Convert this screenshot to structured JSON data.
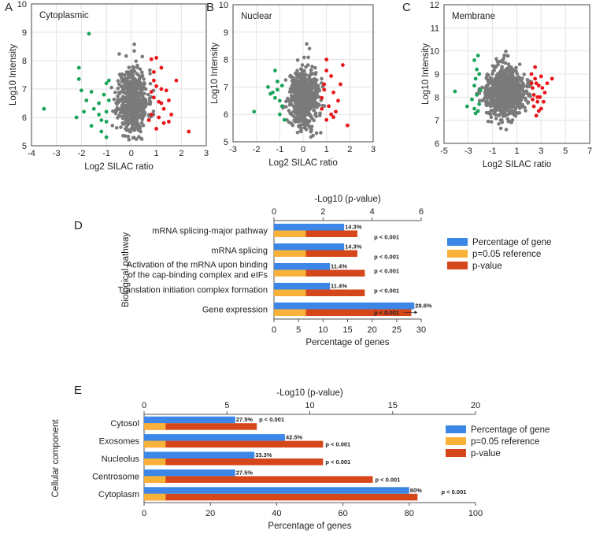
{
  "colors": {
    "gray": "#7a7a7a",
    "green": "#1aa35a",
    "red": "#e8161a",
    "blue": "#3b86e6",
    "orange": "#f8b23a",
    "darkorange": "#d6461b"
  },
  "chart_data": [
    {
      "type": "scatter",
      "panel": "A",
      "title": "Cytoplasmic",
      "xlabel": "Log2 SILAC ratio",
      "ylabel": "Log10 Intensity",
      "xlim": [
        -4,
        3
      ],
      "ylim": [
        5,
        10
      ],
      "xticks": [
        -4,
        -3,
        -2,
        -1,
        0,
        1,
        2,
        3
      ],
      "yticks": [
        5,
        6,
        7,
        8,
        9,
        10
      ],
      "cloud": {
        "cx": 0.05,
        "cy": 6.6,
        "sx": 0.3,
        "sy": 0.65,
        "n": 550,
        "xmin": -1.5,
        "xmax": 1.4,
        "ymin": 5.2,
        "ymax": 9.2
      },
      "down": [
        [
          -3.5,
          6.3
        ],
        [
          -1.7,
          8.95
        ],
        [
          -2.1,
          7.75
        ],
        [
          -2.1,
          7.35
        ],
        [
          -2.0,
          6.95
        ],
        [
          -1.8,
          6.6
        ],
        [
          -1.6,
          6.9
        ],
        [
          -1.5,
          6.3
        ],
        [
          -1.9,
          6.2
        ],
        [
          -2.2,
          6.0
        ],
        [
          -1.3,
          6.5
        ],
        [
          -1.2,
          5.9
        ],
        [
          -1.0,
          6.2
        ],
        [
          -1.0,
          7.2
        ],
        [
          -0.9,
          7.3
        ],
        [
          -1.1,
          6.8
        ],
        [
          -1.2,
          5.5
        ],
        [
          -1.0,
          5.3
        ],
        [
          -1.3,
          6.1
        ],
        [
          -1.6,
          5.7
        ],
        [
          -0.9,
          6.6
        ],
        [
          -1.0,
          5.85
        ]
      ],
      "up": [
        [
          2.3,
          5.5
        ],
        [
          1.8,
          7.3
        ],
        [
          1.6,
          6.1
        ],
        [
          1.5,
          6.6
        ],
        [
          1.4,
          6.95
        ],
        [
          1.3,
          5.8
        ],
        [
          1.2,
          6.5
        ],
        [
          1.0,
          7.1
        ],
        [
          0.9,
          7.6
        ],
        [
          0.8,
          8.05
        ],
        [
          1.0,
          8.1
        ],
        [
          1.2,
          7.75
        ],
        [
          0.9,
          6.7
        ],
        [
          1.1,
          6.0
        ],
        [
          1.3,
          6.3
        ],
        [
          0.8,
          6.1
        ],
        [
          1.0,
          5.6
        ],
        [
          0.9,
          7.3
        ],
        [
          1.2,
          7.0
        ],
        [
          0.7,
          5.9
        ],
        [
          0.8,
          6.9
        ],
        [
          1.1,
          6.55
        ],
        [
          1.5,
          5.85
        ]
      ]
    },
    {
      "type": "scatter",
      "panel": "B",
      "title": "Nuclear",
      "xlabel": "Log2 SILAC ratio",
      "ylabel": "Log10 Intensity",
      "xlim": [
        -3,
        3
      ],
      "ylim": [
        5,
        10
      ],
      "xticks": [
        -3,
        -2,
        -1,
        0,
        1,
        2,
        3
      ],
      "yticks": [
        5,
        6,
        7,
        8,
        9,
        10
      ],
      "cloud": {
        "cx": 0.0,
        "cy": 6.6,
        "sx": 0.32,
        "sy": 0.6,
        "n": 550,
        "xmin": -1.3,
        "xmax": 1.3,
        "ymin": 5.15,
        "ymax": 9.35
      },
      "down": [
        [
          -2.1,
          6.1
        ],
        [
          -1.5,
          7.0
        ],
        [
          -1.2,
          7.6
        ],
        [
          -1.1,
          6.9
        ],
        [
          -1.0,
          6.5
        ],
        [
          -1.3,
          6.8
        ],
        [
          -0.9,
          6.3
        ],
        [
          -1.1,
          7.2
        ],
        [
          -0.8,
          5.8
        ],
        [
          -1.0,
          6.0
        ],
        [
          -1.2,
          6.6
        ],
        [
          -0.9,
          7.05
        ],
        [
          -1.4,
          6.75
        ]
      ],
      "up": [
        [
          1.9,
          5.6
        ],
        [
          1.7,
          7.8
        ],
        [
          1.6,
          7.1
        ],
        [
          1.5,
          6.5
        ],
        [
          1.4,
          6.1
        ],
        [
          1.3,
          6.8
        ],
        [
          1.2,
          7.4
        ],
        [
          1.0,
          8.0
        ],
        [
          1.1,
          6.3
        ],
        [
          0.9,
          6.9
        ],
        [
          1.0,
          5.8
        ],
        [
          0.8,
          6.6
        ],
        [
          1.3,
          5.9
        ],
        [
          1.0,
          7.6
        ],
        [
          0.9,
          7.1
        ],
        [
          1.2,
          6.0
        ],
        [
          0.8,
          6.2
        ]
      ]
    },
    {
      "type": "scatter",
      "panel": "C",
      "title": "Membrane",
      "xlabel": "Log2 SILAC ratio",
      "ylabel": "Log10 Intensity",
      "xlim": [
        -5,
        7
      ],
      "ylim": [
        6,
        12
      ],
      "xticks": [
        -5,
        -3,
        -1,
        1,
        3,
        5,
        7
      ],
      "yticks": [
        6,
        7,
        8,
        9,
        10,
        11,
        12
      ],
      "cloud": {
        "cx": 0.0,
        "cy": 8.2,
        "sx": 0.85,
        "sy": 0.6,
        "n": 900,
        "xmin": -2.3,
        "xmax": 2.3,
        "ymin": 6.5,
        "ymax": 10.9
      },
      "down": [
        [
          -4.1,
          8.25
        ],
        [
          -3.1,
          7.6
        ],
        [
          -2.7,
          7.9
        ],
        [
          -2.5,
          8.5
        ],
        [
          -2.4,
          8.8
        ],
        [
          -2.3,
          9.2
        ],
        [
          -2.2,
          9.8
        ],
        [
          -2.5,
          9.6
        ],
        [
          -2.3,
          8.1
        ],
        [
          -2.5,
          7.5
        ],
        [
          -2.2,
          7.4
        ],
        [
          -2.1,
          7.7
        ],
        [
          -2.0,
          8.3
        ],
        [
          -2.4,
          7.3
        ],
        [
          -2.1,
          9.0
        ]
      ],
      "up": [
        [
          3.9,
          8.8
        ],
        [
          3.5,
          8.6
        ],
        [
          3.3,
          8.2
        ],
        [
          3.2,
          7.8
        ],
        [
          3.0,
          7.5
        ],
        [
          3.0,
          8.9
        ],
        [
          2.8,
          8.5
        ],
        [
          2.7,
          8.0
        ],
        [
          2.6,
          7.2
        ],
        [
          2.5,
          8.8
        ],
        [
          2.5,
          9.3
        ],
        [
          2.4,
          7.6
        ],
        [
          2.3,
          8.4
        ],
        [
          2.3,
          7.9
        ],
        [
          2.2,
          9.0
        ],
        [
          2.9,
          8.0
        ],
        [
          2.7,
          7.8
        ],
        [
          3.1,
          8.4
        ],
        [
          2.6,
          8.6
        ],
        [
          2.4,
          8.1
        ],
        [
          2.8,
          7.4
        ],
        [
          2.2,
          8.6
        ]
      ]
    },
    {
      "type": "bar",
      "orientation": "horizontal",
      "panel": "D",
      "ylabel": "Biological pathway",
      "xlabel": "Percentage of genes",
      "xlabel_top": "-Log10 (p-value)",
      "xlim": [
        0,
        30
      ],
      "xticks": [
        0,
        5,
        10,
        15,
        20,
        25,
        30
      ],
      "xlim_top": [
        0,
        6
      ],
      "xticks_top": [
        0,
        2,
        4,
        6
      ],
      "categories": [
        "mRNA splicing-major pathway",
        "mRNA splicing",
        "Activation of the mRNA upon binding of the cap-binding complex and eIFs",
        "Translation initiation complex formation",
        "Gene expression"
      ],
      "category_lines": [
        [
          "mRNA splicing-major pathway"
        ],
        [
          "mRNA splicing"
        ],
        [
          "Activation of the mRNA upon binding",
          "of the cap-binding complex and eIFs"
        ],
        [
          "Translation initiation complex formation"
        ],
        [
          "Gene expression"
        ]
      ],
      "percentage_labels": [
        "14.3%",
        "14.3%",
        "11.4%",
        "11.4%",
        "28.6%"
      ],
      "pvalue_labels": [
        "p < 0.001",
        "p < 0.001",
        "p < 0.001",
        "p < 0.001",
        "p < 0.001"
      ],
      "series": [
        {
          "name": "Percentage of gene",
          "axis": "bottom",
          "values": [
            14.3,
            14.3,
            11.4,
            11.4,
            28.6
          ]
        },
        {
          "name": "p=0.05 reference",
          "axis": "top",
          "values": [
            1.3,
            1.3,
            1.3,
            1.3,
            1.3
          ]
        },
        {
          "name": "p-value",
          "axis": "top",
          "values": [
            3.4,
            3.4,
            3.7,
            3.7,
            5.6
          ]
        }
      ]
    },
    {
      "type": "bar",
      "orientation": "horizontal",
      "panel": "E",
      "ylabel": "Cellular component",
      "xlabel": "Percentage of genes",
      "xlabel_top": "-Log10 (p-value)",
      "xlim": [
        0,
        100
      ],
      "xticks": [
        0,
        20,
        40,
        60,
        80,
        100
      ],
      "xlim_top": [
        0,
        20
      ],
      "xticks_top": [
        0,
        5,
        10,
        15,
        20
      ],
      "categories": [
        "Cytosol",
        "Exosomes",
        "Nucleolus",
        "Centrosome",
        "Cytoplasm"
      ],
      "category_lines": [
        [
          "Cytosol"
        ],
        [
          "Exosomes"
        ],
        [
          "Nucleolus"
        ],
        [
          "Centrosome"
        ],
        [
          "Cytoplasm"
        ]
      ],
      "percentage_labels": [
        "27.5%",
        "42.5%",
        "33.3%",
        "27.5%",
        "80%"
      ],
      "pvalue_labels": [
        "p < 0.001",
        "p < 0.001",
        "p < 0.001",
        "p < 0.001",
        "p < 0.001"
      ],
      "series": [
        {
          "name": "Percentage of gene",
          "axis": "bottom",
          "values": [
            27.5,
            42.5,
            33.3,
            27.5,
            80
          ]
        },
        {
          "name": "p=0.05 reference",
          "axis": "top",
          "values": [
            1.3,
            1.3,
            1.3,
            1.3,
            1.3
          ]
        },
        {
          "name": "p-value",
          "axis": "top",
          "values": [
            6.8,
            10.8,
            10.8,
            13.8,
            16.5
          ]
        }
      ]
    }
  ]
}
